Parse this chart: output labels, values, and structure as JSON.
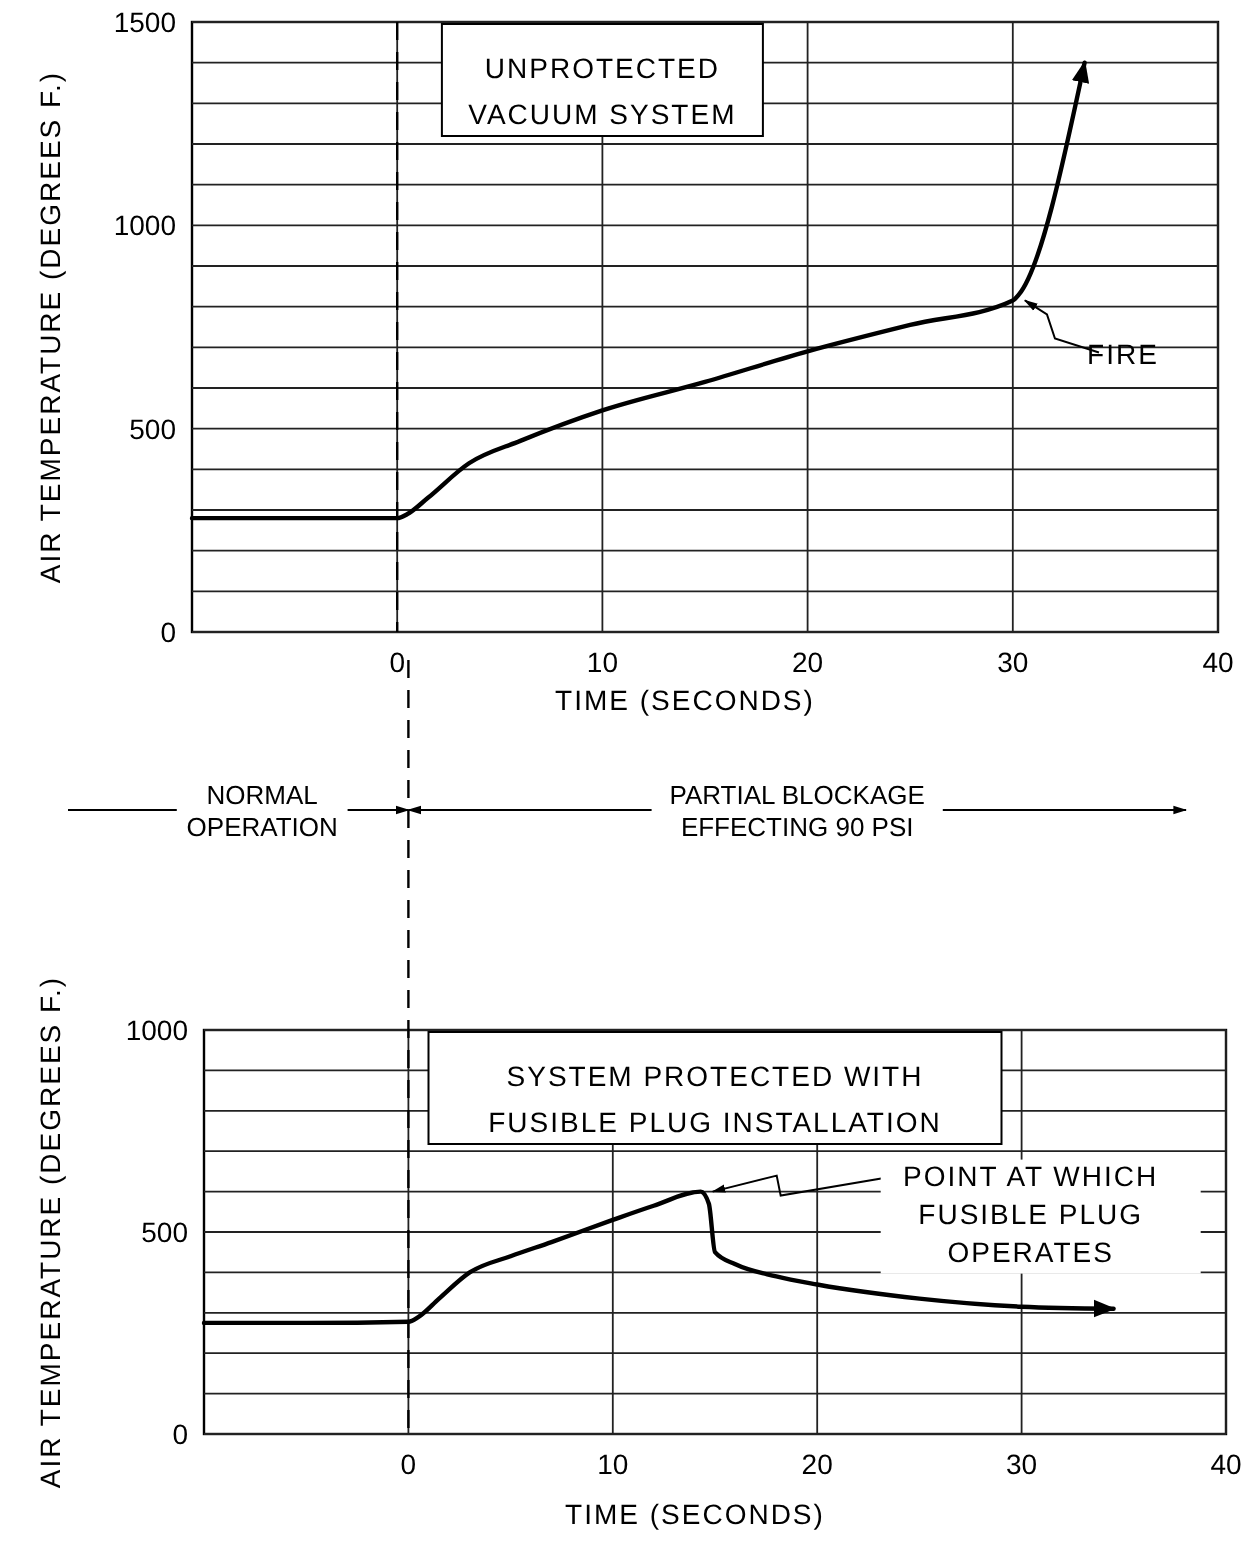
{
  "chart_data": [
    {
      "type": "line",
      "title": "UNPROTECTED VACUUM SYSTEM",
      "xlabel": "TIME (SECONDS)",
      "ylabel": "AIR TEMPERATURE (DEGREES F.)",
      "xlim": [
        -10,
        40
      ],
      "xticks": [
        0,
        10,
        20,
        30,
        40
      ],
      "ylim": [
        0,
        1500
      ],
      "yticks": [
        0,
        {
          "value": 100,
          "label": null
        },
        {
          "value": 200,
          "label": null
        },
        {
          "value": 300,
          "label": null
        },
        {
          "value": 400,
          "label": null
        },
        500,
        {
          "value": 600,
          "label": null
        },
        {
          "value": 700,
          "label": null
        },
        {
          "value": 800,
          "label": null
        },
        {
          "value": 900,
          "label": null
        },
        1000,
        {
          "value": 1100,
          "label": null
        },
        {
          "value": 1200,
          "label": null
        },
        {
          "value": 1300,
          "label": null
        },
        {
          "value": 1400,
          "label": null
        },
        1500
      ],
      "grid": true,
      "series": [
        {
          "color": "#000000",
          "x": [
            -10,
            -5,
            0,
            0.5,
            1.5,
            3.5,
            6,
            10,
            15,
            20,
            25,
            30,
            30.3,
            33.5
          ],
          "values": [
            280,
            280,
            280,
            290,
            330,
            415,
            470,
            545,
            615,
            690,
            755,
            815,
            830,
            1400
          ]
        }
      ],
      "ref_lines": [
        {
          "axis": "x",
          "value": 0,
          "line_style": "dashed"
        }
      ],
      "annotations": [
        {
          "text": "FIRE",
          "x": 30.3,
          "y": 830
        }
      ]
    },
    {
      "type": "line",
      "title": "SYSTEM PROTECTED WITH FUSIBLE PLUG INSTALLATION",
      "xlabel": "TIME (SECONDS)",
      "ylabel": "AIR TEMPERATURE (DEGREES F.)",
      "xlim": [
        -10,
        40
      ],
      "xticks": [
        0,
        10,
        20,
        30,
        40
      ],
      "ylim": [
        0,
        1000
      ],
      "yticks": [
        0,
        {
          "value": 100,
          "label": null
        },
        {
          "value": 200,
          "label": null
        },
        {
          "value": 300,
          "label": null
        },
        {
          "value": 400,
          "label": null
        },
        500,
        {
          "value": 600,
          "label": null
        },
        {
          "value": 700,
          "label": null
        },
        {
          "value": 800,
          "label": null
        },
        {
          "value": 900,
          "label": null
        },
        1000
      ],
      "grid": true,
      "series": [
        {
          "color": "#000000",
          "x": [
            -10,
            -5,
            0,
            0.5,
            1.5,
            3,
            5,
            7,
            10,
            12,
            14.3,
            14.7,
            15,
            16,
            18,
            20,
            25,
            30,
            34.5
          ],
          "values": [
            275,
            275,
            278,
            290,
            335,
            400,
            440,
            475,
            530,
            565,
            600,
            570,
            450,
            420,
            390,
            370,
            335,
            315,
            310
          ]
        }
      ],
      "ref_lines": [
        {
          "axis": "x",
          "value": 0,
          "line_style": "dashed"
        }
      ],
      "annotations": [
        {
          "text": "POINT AT WHICH FUSIBLE PLUG OPERATES",
          "x": 14.3,
          "y": 600
        },
        "NORMAL OPERATION",
        "PARTIAL BLOCKAGE EFFECTING 90 PSI"
      ]
    }
  ]
}
